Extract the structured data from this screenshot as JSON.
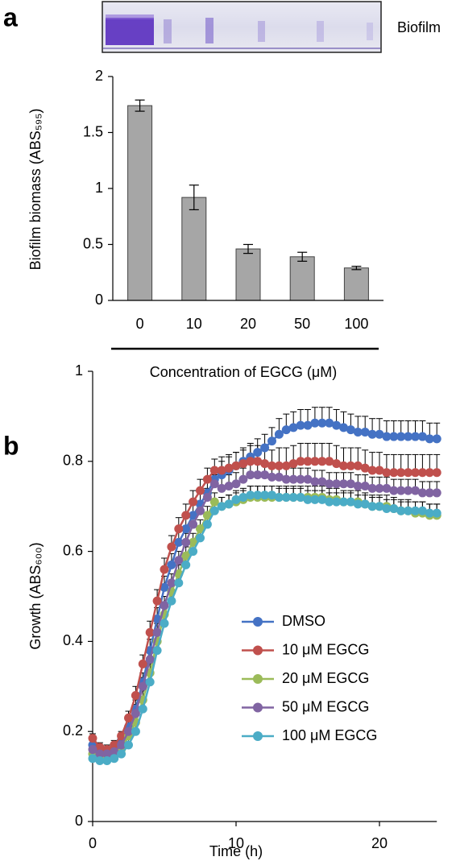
{
  "chart_data": [
    {
      "type": "bar",
      "panel_label": "a",
      "image_label": "Biofilm",
      "y_label": "Biofilm biomass (ABS₅₉₅)",
      "x_label": "Concentration of EGCG (μM)",
      "categories": [
        "0",
        "10",
        "20",
        "50",
        "100"
      ],
      "values": [
        1.74,
        0.92,
        0.46,
        0.39,
        0.29
      ],
      "errors": [
        0.05,
        0.11,
        0.04,
        0.04,
        0.015
      ],
      "color": "#a6a6a6",
      "ylim": [
        0,
        2
      ],
      "yticks": [
        0,
        0.5,
        1,
        1.5,
        2
      ]
    },
    {
      "type": "line",
      "panel_label": "b",
      "y_label": "Growth (ABS₆₀₀)",
      "x_label": "Time (h)",
      "x": [
        0,
        0.5,
        1,
        1.5,
        2,
        2.5,
        3,
        3.5,
        4,
        4.5,
        5,
        5.5,
        6,
        6.5,
        7,
        7.5,
        8,
        8.5,
        9,
        9.5,
        10,
        10.5,
        11,
        11.5,
        12,
        12.5,
        13,
        13.5,
        14,
        14.5,
        15,
        15.5,
        16,
        16.5,
        17,
        17.5,
        18,
        18.5,
        19,
        19.5,
        20,
        20.5,
        21,
        21.5,
        22,
        22.5,
        23,
        23.5,
        24
      ],
      "series": [
        {
          "name": "DMSO",
          "color": "#4472c4",
          "values": [
            0.17,
            0.155,
            0.15,
            0.16,
            0.18,
            0.21,
            0.25,
            0.31,
            0.38,
            0.45,
            0.52,
            0.57,
            0.62,
            0.65,
            0.68,
            0.705,
            0.73,
            0.76,
            0.77,
            0.78,
            0.79,
            0.8,
            0.81,
            0.82,
            0.83,
            0.845,
            0.86,
            0.87,
            0.875,
            0.88,
            0.88,
            0.885,
            0.885,
            0.885,
            0.88,
            0.875,
            0.87,
            0.865,
            0.865,
            0.86,
            0.86,
            0.855,
            0.855,
            0.855,
            0.855,
            0.855,
            0.855,
            0.85,
            0.85
          ],
          "errors": [
            0.01,
            0.01,
            0.01,
            0.01,
            0.01,
            0.015,
            0.02,
            0.02,
            0.025,
            0.025,
            0.025,
            0.025,
            0.025,
            0.025,
            0.025,
            0.025,
            0.025,
            0.025,
            0.03,
            0.03,
            0.03,
            0.03,
            0.03,
            0.03,
            0.03,
            0.03,
            0.035,
            0.035,
            0.035,
            0.035,
            0.035,
            0.035,
            0.035,
            0.035,
            0.035,
            0.035,
            0.035,
            0.035,
            0.035,
            0.035,
            0.035,
            0.035,
            0.035,
            0.035,
            0.035,
            0.035,
            0.035,
            0.035,
            0.035
          ]
        },
        {
          "name": "10 μM EGCG",
          "color": "#c0504d",
          "values": [
            0.185,
            0.165,
            0.16,
            0.17,
            0.19,
            0.23,
            0.28,
            0.35,
            0.42,
            0.49,
            0.56,
            0.61,
            0.65,
            0.68,
            0.71,
            0.735,
            0.76,
            0.78,
            0.78,
            0.785,
            0.79,
            0.795,
            0.8,
            0.8,
            0.795,
            0.79,
            0.79,
            0.79,
            0.795,
            0.8,
            0.8,
            0.8,
            0.8,
            0.8,
            0.795,
            0.79,
            0.79,
            0.79,
            0.785,
            0.78,
            0.78,
            0.775,
            0.775,
            0.775,
            0.775,
            0.775,
            0.775,
            0.775,
            0.775
          ],
          "errors": [
            0.01,
            0.01,
            0.01,
            0.01,
            0.01,
            0.015,
            0.02,
            0.02,
            0.025,
            0.025,
            0.025,
            0.025,
            0.025,
            0.025,
            0.025,
            0.025,
            0.025,
            0.025,
            0.03,
            0.03,
            0.03,
            0.03,
            0.035,
            0.035,
            0.035,
            0.035,
            0.04,
            0.04,
            0.04,
            0.04,
            0.04,
            0.04,
            0.04,
            0.04,
            0.04,
            0.04,
            0.04,
            0.04,
            0.04,
            0.04,
            0.04,
            0.04,
            0.04,
            0.04,
            0.04,
            0.04,
            0.04,
            0.04,
            0.04
          ]
        },
        {
          "name": "20 μM EGCG",
          "color": "#9bbb59",
          "values": [
            0.15,
            0.14,
            0.14,
            0.145,
            0.16,
            0.19,
            0.22,
            0.27,
            0.33,
            0.4,
            0.46,
            0.51,
            0.55,
            0.59,
            0.62,
            0.65,
            0.68,
            0.71,
            0.7,
            0.705,
            0.71,
            0.715,
            0.72,
            0.72,
            0.72,
            0.72,
            0.72,
            0.72,
            0.72,
            0.72,
            0.72,
            0.72,
            0.72,
            0.715,
            0.715,
            0.71,
            0.71,
            0.71,
            0.705,
            0.7,
            0.7,
            0.7,
            0.695,
            0.69,
            0.69,
            0.685,
            0.685,
            0.68,
            0.68
          ],
          "errors": [
            0.01,
            0.01,
            0.01,
            0.01,
            0.01,
            0.015,
            0.02,
            0.02,
            0.02,
            0.02,
            0.02,
            0.02,
            0.02,
            0.02,
            0.02,
            0.02,
            0.02,
            0.02,
            0.02,
            0.02,
            0.02,
            0.02,
            0.025,
            0.025,
            0.025,
            0.025,
            0.025,
            0.025,
            0.025,
            0.025,
            0.025,
            0.025,
            0.025,
            0.025,
            0.025,
            0.025,
            0.025,
            0.025,
            0.025,
            0.025,
            0.025,
            0.025,
            0.025,
            0.025,
            0.025,
            0.025,
            0.025,
            0.025,
            0.025
          ]
        },
        {
          "name": "50 μM EGCG",
          "color": "#8064a2",
          "values": [
            0.16,
            0.15,
            0.15,
            0.155,
            0.17,
            0.2,
            0.24,
            0.3,
            0.36,
            0.42,
            0.48,
            0.53,
            0.58,
            0.62,
            0.66,
            0.69,
            0.72,
            0.75,
            0.74,
            0.745,
            0.75,
            0.76,
            0.77,
            0.77,
            0.77,
            0.765,
            0.765,
            0.76,
            0.76,
            0.76,
            0.76,
            0.755,
            0.755,
            0.75,
            0.75,
            0.75,
            0.75,
            0.745,
            0.745,
            0.74,
            0.74,
            0.74,
            0.735,
            0.735,
            0.735,
            0.735,
            0.73,
            0.73,
            0.73
          ],
          "errors": [
            0.01,
            0.01,
            0.01,
            0.01,
            0.01,
            0.015,
            0.02,
            0.02,
            0.02,
            0.02,
            0.02,
            0.02,
            0.02,
            0.02,
            0.02,
            0.02,
            0.02,
            0.02,
            0.025,
            0.025,
            0.025,
            0.025,
            0.025,
            0.025,
            0.025,
            0.025,
            0.025,
            0.025,
            0.025,
            0.025,
            0.025,
            0.025,
            0.025,
            0.025,
            0.025,
            0.025,
            0.025,
            0.025,
            0.025,
            0.025,
            0.025,
            0.025,
            0.025,
            0.025,
            0.025,
            0.025,
            0.025,
            0.025,
            0.025
          ]
        },
        {
          "name": "100 μM EGCG",
          "color": "#4bacc6",
          "values": [
            0.14,
            0.135,
            0.135,
            0.14,
            0.15,
            0.17,
            0.2,
            0.25,
            0.31,
            0.38,
            0.44,
            0.49,
            0.53,
            0.57,
            0.6,
            0.63,
            0.66,
            0.69,
            0.7,
            0.705,
            0.715,
            0.72,
            0.725,
            0.725,
            0.725,
            0.725,
            0.72,
            0.72,
            0.72,
            0.72,
            0.715,
            0.715,
            0.715,
            0.71,
            0.71,
            0.71,
            0.71,
            0.705,
            0.705,
            0.7,
            0.7,
            0.695,
            0.695,
            0.69,
            0.69,
            0.69,
            0.69,
            0.685,
            0.685
          ],
          "errors": [
            0.01,
            0.01,
            0.01,
            0.01,
            0.01,
            0.015,
            0.02,
            0.02,
            0.02,
            0.02,
            0.02,
            0.02,
            0.02,
            0.02,
            0.02,
            0.02,
            0.02,
            0.02,
            0.02,
            0.02,
            0.02,
            0.02,
            0.02,
            0.02,
            0.02,
            0.02,
            0.02,
            0.02,
            0.02,
            0.02,
            0.02,
            0.02,
            0.02,
            0.02,
            0.02,
            0.02,
            0.02,
            0.02,
            0.02,
            0.02,
            0.02,
            0.02,
            0.02,
            0.02,
            0.02,
            0.02,
            0.02,
            0.02,
            0.02
          ]
        }
      ],
      "xlim": [
        0,
        24
      ],
      "xticks": [
        0,
        10,
        20
      ],
      "ylim": [
        0,
        1
      ],
      "yticks": [
        0,
        0.2,
        0.4,
        0.6,
        0.8,
        1
      ],
      "legend": "lower right"
    }
  ]
}
